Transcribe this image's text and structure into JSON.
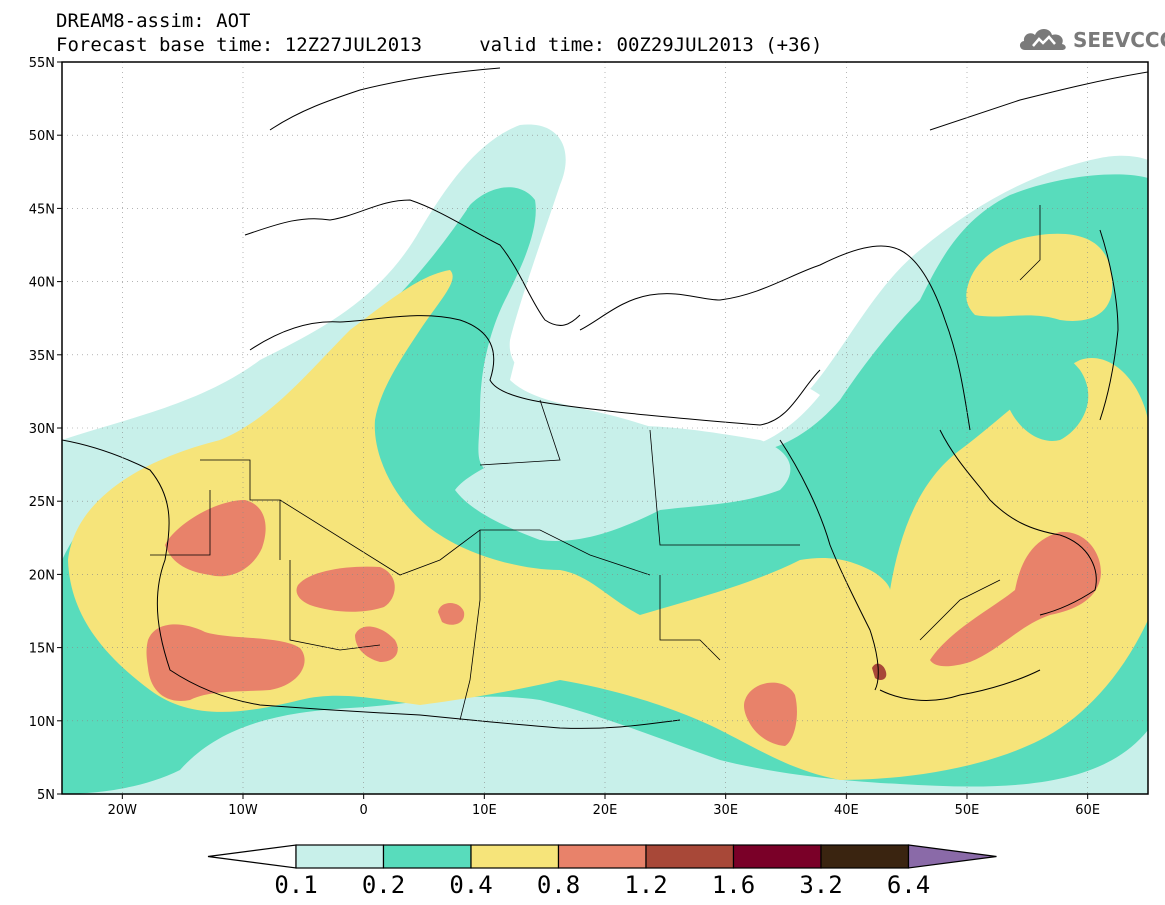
{
  "title": {
    "line1": "DREAM8-assim: AOT",
    "line2": "Forecast base time: 12Z27JUL2013     valid time: 00Z29JUL2013 (+36)"
  },
  "logo": {
    "text": "SEEVCCC",
    "icon": "cloud-icon",
    "color": "#7a7a7a"
  },
  "map": {
    "lat_labels": [
      "55N",
      "50N",
      "45N",
      "40N",
      "35N",
      "30N",
      "25N",
      "20N",
      "15N",
      "10N",
      "5N"
    ],
    "lon_labels": [
      "20W",
      "10W",
      "0",
      "10E",
      "20E",
      "30E",
      "40E",
      "50E",
      "60E"
    ],
    "grid": true,
    "colors": {
      "0.1-0.2": "#c8f0ea",
      "0.2-0.4": "#58dcbc",
      "0.4-0.8": "#f6e47a",
      "0.8-1.2": "#e8826a",
      "1.2-1.6": "#a84838",
      "1.6-3.2": "#7a0028",
      "3.2-6.4": "#3a2410",
      "above-6.4": "#8a6aa8"
    }
  },
  "colorbar": {
    "labels": [
      "0.1",
      "0.2",
      "0.4",
      "0.8",
      "1.2",
      "1.6",
      "3.2",
      "6.4"
    ],
    "colors": [
      "#ffffff",
      "#c8f0ea",
      "#58dcbc",
      "#f6e47a",
      "#e8826a",
      "#a84838",
      "#7a0028",
      "#3a2410",
      "#8a6aa8"
    ]
  }
}
